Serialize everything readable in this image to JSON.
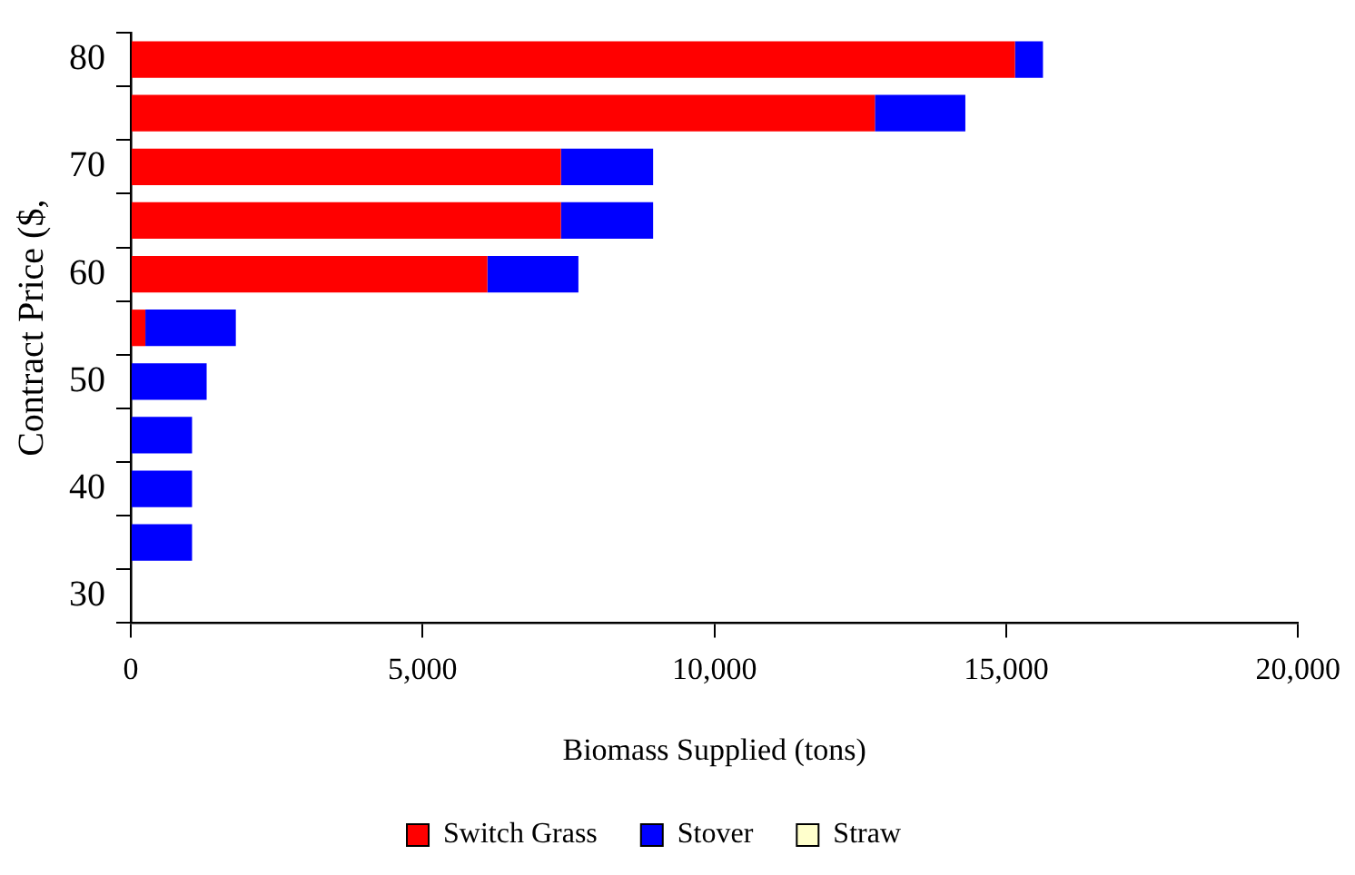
{
  "chart_data": {
    "type": "bar",
    "orientation": "horizontal",
    "stacked": true,
    "xlabel": "Biomass Supplied (tons)",
    "ylabel": "Contract Price ($,",
    "categories": [
      "80",
      null,
      "70",
      null,
      "60",
      null,
      "50",
      null,
      "40",
      null,
      "30"
    ],
    "series": [
      {
        "name": "Switch Grass",
        "color": "#ff0000",
        "values": [
          15150,
          12750,
          7370,
          7370,
          6110,
          250,
          null,
          null,
          null,
          null,
          null
        ]
      },
      {
        "name": "Stover",
        "color": "#0000ff",
        "values": [
          480,
          1550,
          1580,
          1580,
          1560,
          1550,
          1300,
          1050,
          1050,
          1050,
          null
        ]
      },
      {
        "name": "Straw",
        "color": "#ffffcc",
        "values": [
          null,
          null,
          null,
          null,
          null,
          null,
          null,
          null,
          null,
          null,
          null
        ]
      }
    ],
    "xlim": [
      0,
      20000
    ],
    "xticks": [
      {
        "value": 0,
        "label": "0"
      },
      {
        "value": 5000,
        "label": "5,000"
      },
      {
        "value": 10000,
        "label": "10,000"
      },
      {
        "value": 15000,
        "label": "15,000"
      },
      {
        "value": 20000,
        "label": "20,000"
      }
    ],
    "grid": false,
    "legend": "bottom"
  }
}
